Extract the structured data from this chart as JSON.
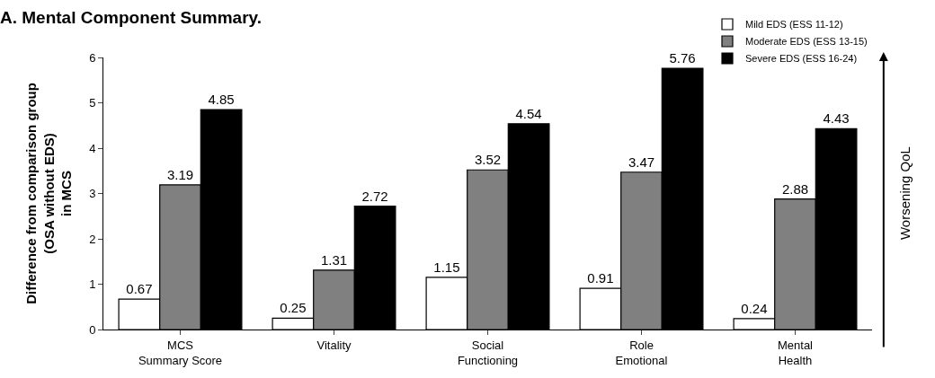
{
  "chart_data": {
    "type": "bar",
    "title": "A. Mental Component Summary.",
    "ylabel": "Difference from comparison group\n(OSA without EDS)\nin MCS",
    "categories": [
      "MCS\nSummary Score",
      "Vitality",
      "Social\nFunctioning",
      "Role\nEmotional",
      "Mental\nHealth"
    ],
    "series": [
      {
        "name": "Mild EDS (ESS 11-12)",
        "color": "#ffffff",
        "values": [
          0.67,
          0.25,
          1.15,
          0.91,
          0.24
        ]
      },
      {
        "name": "Moderate EDS (ESS 13-15)",
        "color": "#808080",
        "values": [
          3.19,
          1.31,
          3.52,
          3.47,
          2.88
        ]
      },
      {
        "name": "Severe EDS (ESS 16-24)",
        "color": "#000000",
        "values": [
          4.85,
          2.72,
          4.54,
          5.76,
          4.43
        ]
      }
    ],
    "ylim": [
      0,
      6
    ],
    "yticks": [
      0,
      1,
      2,
      3,
      4,
      5,
      6
    ],
    "data_labels": true,
    "legend": "top right",
    "annotations": [
      "Worsening QoL"
    ]
  }
}
